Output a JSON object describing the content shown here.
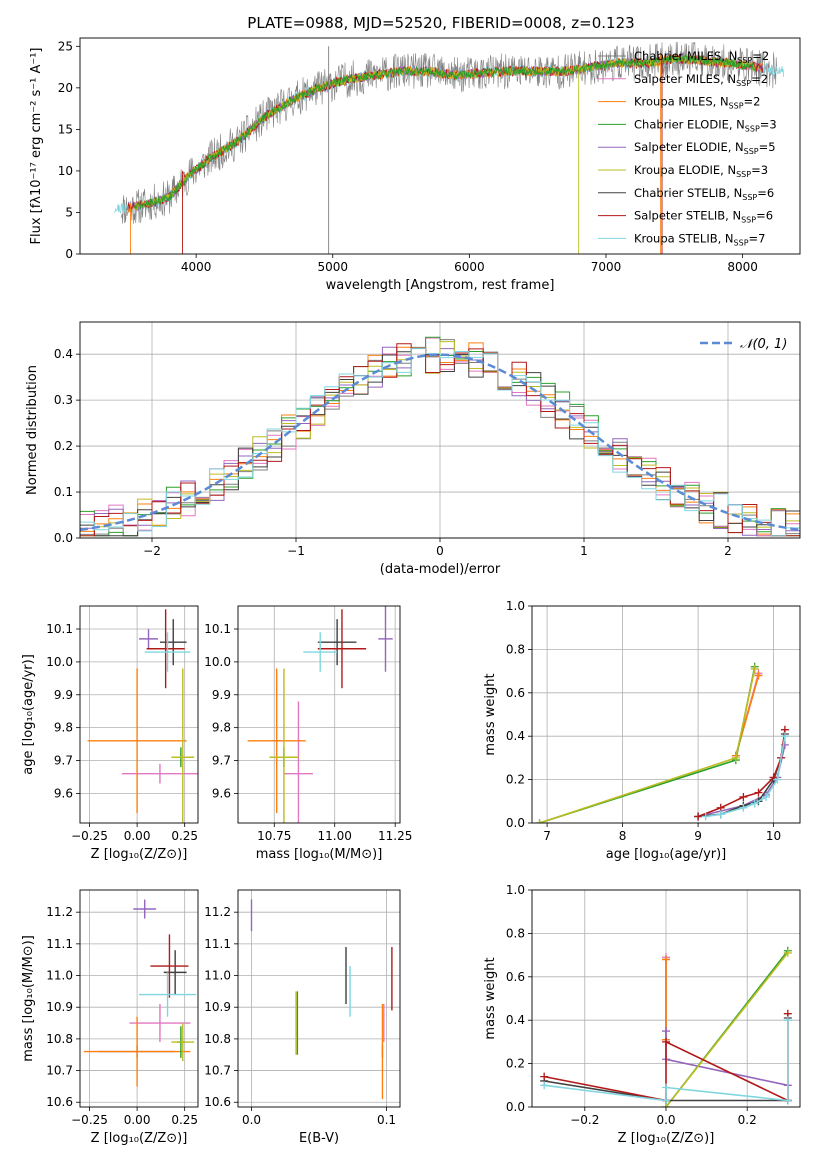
{
  "figure": {
    "title": "PLATE=0988, MJD=52520, FIBERID=0008, z=0.123"
  },
  "models": [
    {
      "name": "Chabrier MILES",
      "nssp": "2",
      "color": "#7f7f7f"
    },
    {
      "name": "Salpeter MILES",
      "nssp": "2",
      "color": "#e377c2"
    },
    {
      "name": "Kroupa MILES",
      "nssp": "2",
      "color": "#ff7f0e"
    },
    {
      "name": "Chabrier ELODIE",
      "nssp": "3",
      "color": "#2ca02c"
    },
    {
      "name": "Salpeter ELODIE",
      "nssp": "5",
      "color": "#9467bd"
    },
    {
      "name": "Kroupa ELODIE",
      "nssp": "3",
      "color": "#bcbd22"
    },
    {
      "name": "Chabrier STELIB",
      "nssp": "6",
      "color": "#404040"
    },
    {
      "name": "Salpeter STELIB",
      "nssp": "6",
      "color": "#b21a1a"
    },
    {
      "name": "Kroupa STELIB",
      "nssp": "7",
      "color": "#7fd6e0"
    }
  ],
  "chart_data": [
    {
      "id": "spectrum",
      "type": "line",
      "xlabel": "wavelength [Angstrom, rest frame]",
      "ylabel": "Flux [fλ10⁻¹⁷ erg cm⁻² s⁻¹ A⁻¹]",
      "xlim": [
        3150,
        8420
      ],
      "ylim": [
        0,
        26
      ],
      "xticks": [
        4000,
        5000,
        6000,
        7000,
        8000
      ],
      "yticks": [
        0,
        5,
        10,
        15,
        20,
        25
      ],
      "grid": false,
      "legend": "upper right",
      "continuum": {
        "x": [
          3450,
          3600,
          3800,
          3950,
          4100,
          4300,
          4500,
          4700,
          4900,
          5100,
          5300,
          5500,
          5700,
          5900,
          6100,
          6300,
          6500,
          6700,
          6900,
          7100,
          7300,
          7500,
          7700,
          7900,
          8100,
          8250
        ],
        "y": [
          5.5,
          5.8,
          6.8,
          9.5,
          11.5,
          13.5,
          16.5,
          18.5,
          20.0,
          21.0,
          21.5,
          22.0,
          22.0,
          21.5,
          21.8,
          22.0,
          22.0,
          22.0,
          22.5,
          23.0,
          23.0,
          23.5,
          23.3,
          23.0,
          22.5,
          22.0
        ]
      }
    },
    {
      "id": "residuals",
      "type": "histogram",
      "xlabel": "(data-model)/error",
      "ylabel": "Normed distribution",
      "xlim": [
        -2.5,
        2.5
      ],
      "ylim": [
        0,
        0.47
      ],
      "xticks": [
        -2,
        -1,
        0,
        1,
        2
      ],
      "yticks": [
        0.0,
        0.1,
        0.2,
        0.3,
        0.4
      ],
      "grid": true,
      "legend": "upper right",
      "reference_label": "𝒩(0, 1)",
      "reference_color": "#5b8ad6"
    },
    {
      "id": "age-vs-Z",
      "type": "scatter",
      "xlabel": "Z [log₁₀(Z/Z⊙)]",
      "ylabel": "age  [log₁₀(age/yr)]",
      "xlim": [
        -0.3,
        0.32
      ],
      "ylim": [
        9.51,
        10.17
      ],
      "xticks": [
        -0.25,
        0.0,
        0.25
      ],
      "yticks": [
        9.6,
        9.7,
        9.8,
        9.9,
        10.0,
        10.1
      ],
      "grid": true,
      "points": [
        {
          "model": 0,
          "x": 0.0,
          "y": 9.76,
          "xerr": 0.0,
          "yerr": 0.0
        },
        {
          "model": 1,
          "x": 0.12,
          "y": 9.66,
          "xerr": 0.2,
          "yerr": 0.03
        },
        {
          "model": 2,
          "x": 0.0,
          "y": 9.76,
          "xerr": 0.26,
          "yerr": 0.22
        },
        {
          "model": 3,
          "x": 0.23,
          "y": 9.71,
          "xerr": 0.02,
          "yerr": 0.03
        },
        {
          "model": 4,
          "x": 0.06,
          "y": 10.07,
          "xerr": 0.05,
          "yerr": 0.03
        },
        {
          "model": 5,
          "x": 0.24,
          "y": 9.71,
          "xerr": 0.06,
          "yerr": 0.27
        },
        {
          "model": 6,
          "x": 0.19,
          "y": 10.06,
          "xerr": 0.07,
          "yerr": 0.07
        },
        {
          "model": 7,
          "x": 0.15,
          "y": 10.04,
          "xerr": 0.1,
          "yerr": 0.12
        },
        {
          "model": 8,
          "x": 0.16,
          "y": 10.03,
          "xerr": 0.12,
          "yerr": 0.06
        }
      ]
    },
    {
      "id": "age-vs-mass",
      "type": "scatter",
      "xlabel": "mass [log₁₀(M/M⊙)]",
      "ylabel": "",
      "xlim": [
        10.6,
        11.27
      ],
      "ylim": [
        9.51,
        10.17
      ],
      "xticks": [
        10.75,
        11.0,
        11.25
      ],
      "yticks": [
        9.6,
        9.7,
        9.8,
        9.9,
        10.0,
        10.1
      ],
      "grid": true,
      "points": [
        {
          "model": 0,
          "x": 10.76,
          "y": 9.76,
          "xerr": 0.02,
          "yerr": 0.0
        },
        {
          "model": 1,
          "x": 10.85,
          "y": 9.66,
          "xerr": 0.06,
          "yerr": 0.22
        },
        {
          "model": 2,
          "x": 10.76,
          "y": 9.76,
          "xerr": 0.12,
          "yerr": 0.22
        },
        {
          "model": 3,
          "x": 10.79,
          "y": 9.71,
          "xerr": 0.05,
          "yerr": 0.03
        },
        {
          "model": 4,
          "x": 11.21,
          "y": 10.07,
          "xerr": 0.03,
          "yerr": 0.1
        },
        {
          "model": 5,
          "x": 10.79,
          "y": 9.71,
          "xerr": 0.06,
          "yerr": 0.27
        },
        {
          "model": 6,
          "x": 11.01,
          "y": 10.06,
          "xerr": 0.08,
          "yerr": 0.07
        },
        {
          "model": 7,
          "x": 11.03,
          "y": 10.04,
          "xerr": 0.1,
          "yerr": 0.12
        },
        {
          "model": 8,
          "x": 10.94,
          "y": 10.03,
          "xerr": 0.07,
          "yerr": 0.06
        }
      ]
    },
    {
      "id": "weight-vs-age",
      "type": "line",
      "xlabel": "age  [log₁₀(age/yr)]",
      "ylabel": "mass weight",
      "xlim": [
        6.8,
        10.35
      ],
      "ylim": [
        0,
        1.0
      ],
      "xticks": [
        7,
        8,
        9,
        10
      ],
      "yticks": [
        0.0,
        0.2,
        0.4,
        0.6,
        0.8,
        1.0
      ],
      "grid": true,
      "series": [
        {
          "model": 0,
          "x": [
            9.8,
            9.5
          ],
          "y": [
            0.68,
            0.31
          ]
        },
        {
          "model": 1,
          "x": [
            9.8,
            9.5
          ],
          "y": [
            0.69,
            0.31
          ]
        },
        {
          "model": 2,
          "x": [
            9.8,
            9.5
          ],
          "y": [
            0.68,
            0.31
          ]
        },
        {
          "model": 3,
          "x": [
            6.9,
            9.5,
            9.75
          ],
          "y": [
            0.0,
            0.29,
            0.72
          ]
        },
        {
          "model": 4,
          "x": [
            9.0,
            9.6,
            9.9,
            10.05,
            10.15
          ],
          "y": [
            0.03,
            0.08,
            0.13,
            0.21,
            0.36
          ]
        },
        {
          "model": 5,
          "x": [
            6.9,
            9.5,
            9.75
          ],
          "y": [
            0.0,
            0.3,
            0.71
          ]
        },
        {
          "model": 6,
          "x": [
            9.0,
            9.3,
            9.6,
            9.8,
            10.0,
            10.1,
            10.15
          ],
          "y": [
            0.03,
            0.04,
            0.08,
            0.1,
            0.2,
            0.3,
            0.41
          ]
        },
        {
          "model": 7,
          "x": [
            9.0,
            9.3,
            9.6,
            9.8,
            10.0,
            10.1,
            10.15
          ],
          "y": [
            0.03,
            0.07,
            0.12,
            0.14,
            0.21,
            0.3,
            0.43
          ]
        },
        {
          "model": 8,
          "x": [
            9.1,
            9.3,
            9.6,
            9.75,
            9.9,
            10.05,
            10.15
          ],
          "y": [
            0.03,
            0.04,
            0.07,
            0.09,
            0.12,
            0.2,
            0.4
          ]
        }
      ]
    },
    {
      "id": "mass-vs-Z",
      "type": "scatter",
      "xlabel": "Z [log₁₀(Z/Z⊙)]",
      "ylabel": "mass [log₁₀(M/M⊙)]",
      "xlim": [
        -0.3,
        0.32
      ],
      "ylim": [
        10.585,
        11.27
      ],
      "xticks": [
        -0.25,
        0.0,
        0.25
      ],
      "yticks": [
        10.6,
        10.7,
        10.8,
        10.9,
        11.0,
        11.1,
        11.2
      ],
      "grid": true,
      "points": [
        {
          "model": 0,
          "x": 0.0,
          "y": 10.76,
          "xerr": 0.2,
          "yerr": 0.02
        },
        {
          "model": 1,
          "x": 0.12,
          "y": 10.85,
          "xerr": 0.16,
          "yerr": 0.06
        },
        {
          "model": 2,
          "x": 0.0,
          "y": 10.76,
          "xerr": 0.28,
          "yerr": 0.11
        },
        {
          "model": 3,
          "x": 0.23,
          "y": 10.79,
          "xerr": 0.02,
          "yerr": 0.05
        },
        {
          "model": 4,
          "x": 0.04,
          "y": 11.21,
          "xerr": 0.06,
          "yerr": 0.03
        },
        {
          "model": 5,
          "x": 0.24,
          "y": 10.79,
          "xerr": 0.06,
          "yerr": 0.06
        },
        {
          "model": 6,
          "x": 0.2,
          "y": 11.01,
          "xerr": 0.06,
          "yerr": 0.07
        },
        {
          "model": 7,
          "x": 0.17,
          "y": 11.03,
          "xerr": 0.1,
          "yerr": 0.1
        },
        {
          "model": 8,
          "x": 0.16,
          "y": 10.94,
          "xerr": 0.15,
          "yerr": 0.07
        }
      ]
    },
    {
      "id": "mass-vs-ebv",
      "type": "scatter",
      "xlabel": "E(B-V)",
      "ylabel": "",
      "xlim": [
        -0.01,
        0.11
      ],
      "ylim": [
        10.585,
        11.27
      ],
      "xticks": [
        0.0,
        0.1
      ],
      "yticks": [
        10.6,
        10.7,
        10.8,
        10.9,
        11.0,
        11.1,
        11.2
      ],
      "grid": true,
      "points": [
        {
          "model": 0,
          "x": 0.097,
          "y": 10.76,
          "xerr": 0.0,
          "yerr": 0.02
        },
        {
          "model": 1,
          "x": 0.098,
          "y": 10.85,
          "xerr": 0.0,
          "yerr": 0.06
        },
        {
          "model": 2,
          "x": 0.097,
          "y": 10.76,
          "xerr": 0.0,
          "yerr": 0.15
        },
        {
          "model": 3,
          "x": 0.034,
          "y": 10.85,
          "xerr": 0.0,
          "yerr": 0.1
        },
        {
          "model": 4,
          "x": 0.0,
          "y": 11.19,
          "xerr": 0.0,
          "yerr": 0.05
        },
        {
          "model": 5,
          "x": 0.033,
          "y": 10.85,
          "xerr": 0.0,
          "yerr": 0.1
        },
        {
          "model": 6,
          "x": 0.07,
          "y": 11.0,
          "xerr": 0.0,
          "yerr": 0.09
        },
        {
          "model": 7,
          "x": 0.104,
          "y": 10.99,
          "xerr": 0.0,
          "yerr": 0.1
        },
        {
          "model": 8,
          "x": 0.073,
          "y": 10.95,
          "xerr": 0.0,
          "yerr": 0.08
        }
      ]
    },
    {
      "id": "weight-vs-Z",
      "type": "line",
      "xlabel": "Z [log₁₀(Z/Z⊙)]",
      "ylabel": "mass weight",
      "xlim": [
        -0.33,
        0.33
      ],
      "ylim": [
        0,
        1.0
      ],
      "xticks": [
        -0.2,
        0.0,
        0.2
      ],
      "yticks": [
        0.0,
        0.2,
        0.4,
        0.6,
        0.8,
        1.0
      ],
      "grid": true,
      "series": [
        {
          "model": 0,
          "x": [
            0.0,
            0.0
          ],
          "y": [
            0.31,
            0.68
          ]
        },
        {
          "model": 1,
          "x": [
            0.0,
            0.0
          ],
          "y": [
            0.31,
            0.69
          ]
        },
        {
          "model": 2,
          "x": [
            0.0,
            0.0
          ],
          "y": [
            0.31,
            0.68
          ]
        },
        {
          "model": 3,
          "x": [
            0.0,
            0.3
          ],
          "y": [
            0.0,
            0.72
          ]
        },
        {
          "model": 4,
          "x": [
            0.0,
            0.0,
            0.3,
            0.3
          ],
          "y": [
            0.35,
            0.22,
            0.1,
            0.03
          ]
        },
        {
          "model": 5,
          "x": [
            0.0,
            0.3
          ],
          "y": [
            0.0,
            0.71
          ]
        },
        {
          "model": 6,
          "x": [
            -0.3,
            0.0,
            0.3,
            0.3
          ],
          "y": [
            0.12,
            0.03,
            0.03,
            0.41
          ]
        },
        {
          "model": 7,
          "x": [
            -0.3,
            0.0,
            0.0,
            0.3,
            0.3
          ],
          "y": [
            0.14,
            0.03,
            0.3,
            0.03,
            0.43
          ]
        },
        {
          "model": 8,
          "x": [
            -0.3,
            0.0,
            0.0,
            0.3,
            0.3
          ],
          "y": [
            0.1,
            0.03,
            0.09,
            0.03,
            0.4
          ]
        }
      ]
    }
  ]
}
